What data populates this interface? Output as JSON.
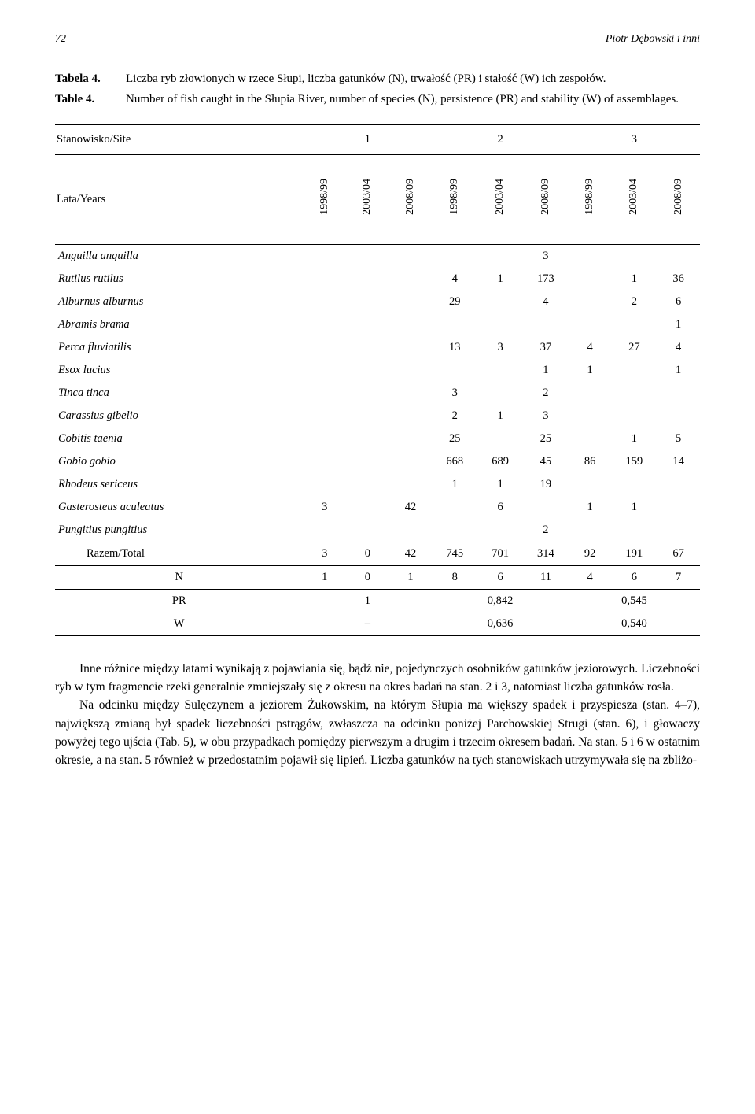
{
  "header": {
    "page_number": "72",
    "running_head": "Piotr Dębowski i inni"
  },
  "table": {
    "caption_pl_label": "Tabela 4.",
    "caption_pl_text": "Liczba ryb złowionych w rzece Słupi, liczba gatunków (N), trwałość (PR) i stałość (W) ich zespołów.",
    "caption_en_label": "Table 4.",
    "caption_en_text": "Number of fish caught in the Słupia River, number of species (N), persistence (PR) and stability (W) of assemblages.",
    "site_label": "Stanowisko/Site",
    "site_values": [
      "1",
      "2",
      "3"
    ],
    "years_label": "Lata/Years",
    "year_headers": [
      "1998/99",
      "2003/04",
      "2008/09",
      "1998/99",
      "2003/04",
      "2008/09",
      "1998/99",
      "2003/04",
      "2008/09"
    ],
    "species": [
      {
        "name": "Anguilla anguilla",
        "v": [
          "",
          "",
          "",
          "",
          "",
          "3",
          "",
          "",
          ""
        ]
      },
      {
        "name": "Rutilus rutilus",
        "v": [
          "",
          "",
          "",
          "4",
          "1",
          "173",
          "",
          "1",
          "36"
        ]
      },
      {
        "name": "Alburnus alburnus",
        "v": [
          "",
          "",
          "",
          "29",
          "",
          "4",
          "",
          "2",
          "6"
        ]
      },
      {
        "name": "Abramis brama",
        "v": [
          "",
          "",
          "",
          "",
          "",
          "",
          "",
          "",
          "1"
        ]
      },
      {
        "name": "Perca fluviatilis",
        "v": [
          "",
          "",
          "",
          "13",
          "3",
          "37",
          "4",
          "27",
          "4"
        ]
      },
      {
        "name": "Esox lucius",
        "v": [
          "",
          "",
          "",
          "",
          "",
          "1",
          "1",
          "",
          "1"
        ]
      },
      {
        "name": "Tinca tinca",
        "v": [
          "",
          "",
          "",
          "3",
          "",
          "2",
          "",
          "",
          ""
        ]
      },
      {
        "name": "Carassius gibelio",
        "v": [
          "",
          "",
          "",
          "2",
          "1",
          "3",
          "",
          "",
          ""
        ]
      },
      {
        "name": "Cobitis taenia",
        "v": [
          "",
          "",
          "",
          "25",
          "",
          "25",
          "",
          "1",
          "5"
        ]
      },
      {
        "name": "Gobio gobio",
        "v": [
          "",
          "",
          "",
          "668",
          "689",
          "45",
          "86",
          "159",
          "14"
        ]
      },
      {
        "name": "Rhodeus sericeus",
        "v": [
          "",
          "",
          "",
          "1",
          "1",
          "19",
          "",
          "",
          ""
        ]
      },
      {
        "name": "Gasterosteus aculeatus",
        "v": [
          "3",
          "",
          "42",
          "",
          "6",
          "",
          "1",
          "1",
          ""
        ]
      },
      {
        "name": "Pungitius pungitius",
        "v": [
          "",
          "",
          "",
          "",
          "",
          "2",
          "",
          "",
          ""
        ]
      }
    ],
    "total_label": "Razem/Total",
    "total_values": [
      "3",
      "0",
      "42",
      "745",
      "701",
      "314",
      "92",
      "191",
      "67"
    ],
    "n_label": "N",
    "n_values": [
      "1",
      "0",
      "1",
      "8",
      "6",
      "11",
      "4",
      "6",
      "7"
    ],
    "pr_label": "PR",
    "pr_values": [
      "1",
      "0,842",
      "0,545"
    ],
    "w_label": "W",
    "w_values": [
      "–",
      "0,636",
      "0,540"
    ]
  },
  "body": {
    "p1": "Inne różnice między latami wynikają z pojawiania się, bądź nie, pojedynczych osobników gatunków jeziorowych. Liczebności ryb w tym fragmencie rzeki generalnie zmniejszały się z okresu na okres badań na stan. 2 i 3, natomiast liczba gatunków rosła.",
    "p2": "Na odcinku między Sulęczynem a jeziorem Żukowskim, na którym Słupia ma większy spadek i przyspiesza (stan. 4–7), największą zmianą był spadek liczebności pstrągów, zwłaszcza na odcinku poniżej Parchowskiej Strugi (stan. 6), i głowaczy powyżej tego ujścia (Tab. 5), w obu przypadkach pomiędzy pierwszym a drugim i trzecim okresem badań. Na stan. 5 i 6 w ostatnim okresie, a na stan. 5 również w przedostatnim pojawił się lipień. Liczba gatunków na tych stanowiskach utrzymywała się na zbliżo-"
  }
}
